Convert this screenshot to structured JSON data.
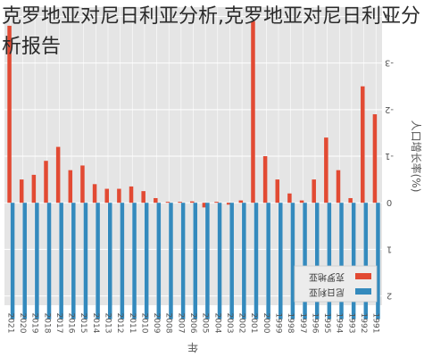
{
  "page": {
    "title": "克罗地亚对尼日利亚分析,克罗地亚对尼日利亚分析报告"
  },
  "chart_data": {
    "type": "bar",
    "orientation": "rotated-180",
    "title": "",
    "xlabel": "年",
    "ylabel": "人口增长率(%)",
    "ylim": [
      -4.2,
      2.2
    ],
    "yticks": [
      2,
      1,
      0,
      -1,
      -2,
      -3,
      -4
    ],
    "grid": true,
    "legend_position": "bottom-right",
    "categories": [
      "2021",
      "2020",
      "2019",
      "2018",
      "2017",
      "2016",
      "2015",
      "2014",
      "2013",
      "2012",
      "2011",
      "2010",
      "2009",
      "2008",
      "2007",
      "2006",
      "2005",
      "2004",
      "2003",
      "2002",
      "2001",
      "2000",
      "1999",
      "1998",
      "1997",
      "1996",
      "1995",
      "1994",
      "1993",
      "1992",
      "1991"
    ],
    "series": [
      {
        "name": "克罗地亚",
        "color": "#e24a33",
        "values": [
          -3.8,
          -0.5,
          -0.6,
          -0.9,
          -1.2,
          -0.7,
          -0.8,
          -0.4,
          -0.3,
          -0.3,
          -0.35,
          -0.25,
          -0.1,
          -0.02,
          -0.02,
          -0.03,
          0.1,
          -0.02,
          0.04,
          -0.05,
          -3.9,
          -1.0,
          -0.5,
          -0.2,
          -0.05,
          -0.5,
          -1.4,
          -0.7,
          -0.1,
          -2.5,
          -1.9
        ]
      },
      {
        "name": "尼日利亚",
        "color": "#348abd",
        "values": [
          2.5,
          2.5,
          2.5,
          2.5,
          2.5,
          2.5,
          2.5,
          2.5,
          2.5,
          2.5,
          2.5,
          2.5,
          2.5,
          2.5,
          2.5,
          2.5,
          2.5,
          2.5,
          2.5,
          2.5,
          2.5,
          2.5,
          2.5,
          2.5,
          2.5,
          2.5,
          2.5,
          2.5,
          2.5,
          2.5,
          2.5
        ]
      }
    ],
    "legend_entries": [
      "克罗地亚",
      "尼日利亚"
    ]
  }
}
